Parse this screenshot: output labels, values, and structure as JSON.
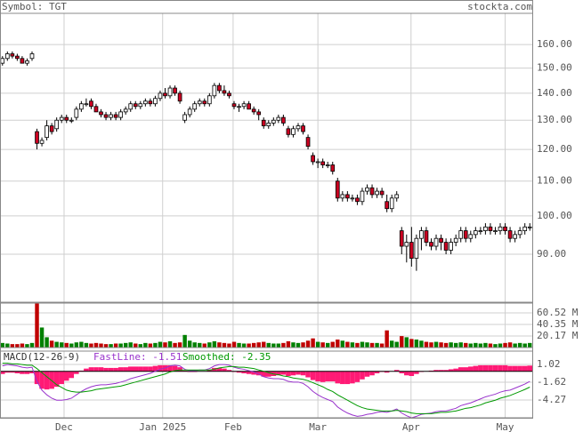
{
  "chart_data": {
    "type": "candlestick",
    "symbol": "Symbol: TGT",
    "source": "stockta.com",
    "log_scale": true,
    "grid": true,
    "xlim": [
      -0.5,
      107.5
    ],
    "xticks": [
      {
        "value": 12.5,
        "label": "Dec"
      },
      {
        "value": 32.5,
        "label": "Jan 2025"
      },
      {
        "value": 46.8,
        "label": "Feb"
      },
      {
        "value": 64,
        "label": "Mar"
      },
      {
        "value": 82.9,
        "label": "Apr"
      },
      {
        "value": 102,
        "label": "May"
      }
    ],
    "ylim": [
      78.9,
      174.3
    ],
    "yticks": [
      {
        "value": 90,
        "label": "90.00"
      },
      {
        "value": 100,
        "label": "100.00"
      },
      {
        "value": 110,
        "label": "110.00"
      },
      {
        "value": 120,
        "label": "120.00"
      },
      {
        "value": 130,
        "label": "130.00"
      },
      {
        "value": 140,
        "label": "140.00"
      },
      {
        "value": 150,
        "label": "150.00"
      },
      {
        "value": 160,
        "label": "160.00"
      }
    ],
    "up_color": "#ffffff",
    "down_color": "#cc0022",
    "candles": [
      [
        152,
        155,
        151,
        154
      ],
      [
        154,
        157,
        153,
        156
      ],
      [
        156,
        157,
        154,
        155
      ],
      [
        155,
        156,
        153,
        154
      ],
      [
        154,
        155,
        152,
        152
      ],
      [
        152,
        154,
        151,
        153
      ],
      [
        154,
        157,
        153,
        156
      ],
      [
        126,
        127,
        120,
        122
      ],
      [
        122,
        124,
        121,
        123
      ],
      [
        124,
        130,
        123,
        128
      ],
      [
        128,
        129,
        125,
        126
      ],
      [
        127,
        131,
        126,
        130
      ],
      [
        130,
        132,
        129,
        131
      ],
      [
        131,
        132,
        129,
        130
      ],
      [
        130,
        131,
        129,
        130
      ],
      [
        131,
        135,
        130,
        134
      ],
      [
        134,
        137,
        133,
        136
      ],
      [
        136,
        138,
        135,
        136
      ],
      [
        137,
        138,
        134,
        135
      ],
      [
        135,
        136,
        133,
        133
      ],
      [
        133,
        134,
        131,
        132
      ],
      [
        132,
        133,
        130,
        131
      ],
      [
        131,
        133,
        130,
        132
      ],
      [
        132,
        133,
        130,
        131
      ],
      [
        131,
        134,
        130,
        133
      ],
      [
        133,
        135,
        132,
        134
      ],
      [
        134,
        137,
        133,
        136
      ],
      [
        136,
        137,
        134,
        135
      ],
      [
        135,
        137,
        134,
        136
      ],
      [
        136,
        138,
        135,
        137
      ],
      [
        137,
        138,
        135,
        136
      ],
      [
        136,
        139,
        135,
        138
      ],
      [
        138,
        141,
        137,
        140
      ],
      [
        140,
        142,
        138,
        139
      ],
      [
        139,
        143,
        138,
        142
      ],
      [
        142,
        143,
        139,
        140
      ],
      [
        140,
        141,
        136,
        137
      ],
      [
        130,
        133,
        129,
        132
      ],
      [
        132,
        135,
        131,
        134
      ],
      [
        134,
        137,
        133,
        136
      ],
      [
        136,
        138,
        135,
        137
      ],
      [
        137,
        138,
        135,
        136
      ],
      [
        136,
        140,
        135,
        139
      ],
      [
        139,
        144,
        138,
        143
      ],
      [
        143,
        144,
        140,
        141
      ],
      [
        141,
        143,
        139,
        140
      ],
      [
        140,
        141,
        138,
        139
      ],
      [
        136,
        137,
        134,
        135
      ],
      [
        135,
        136,
        133,
        135
      ],
      [
        135,
        137,
        134,
        136
      ],
      [
        136,
        137,
        134,
        134
      ],
      [
        134,
        135,
        132,
        133
      ],
      [
        133,
        134,
        130,
        132
      ],
      [
        130,
        131,
        127,
        128
      ],
      [
        128,
        130,
        127,
        129
      ],
      [
        129,
        131,
        128,
        130
      ],
      [
        130,
        132,
        129,
        131
      ],
      [
        131,
        132,
        128,
        129
      ],
      [
        127,
        128,
        124,
        125
      ],
      [
        125,
        128,
        124,
        127
      ],
      [
        127,
        129,
        126,
        128
      ],
      [
        128,
        129,
        125,
        126
      ],
      [
        124,
        125,
        120,
        121
      ],
      [
        118,
        119,
        115,
        116
      ],
      [
        116,
        117,
        114,
        116
      ],
      [
        116,
        117,
        114,
        115
      ],
      [
        115,
        116,
        114,
        115
      ],
      [
        115,
        116,
        112,
        113
      ],
      [
        110,
        111,
        104,
        105
      ],
      [
        105,
        107,
        104,
        106
      ],
      [
        106,
        107,
        104,
        105
      ],
      [
        105,
        106,
        104,
        105
      ],
      [
        105,
        106,
        103,
        104
      ],
      [
        104,
        108,
        103,
        107
      ],
      [
        107,
        109,
        106,
        108
      ],
      [
        108,
        109,
        105,
        106
      ],
      [
        106,
        108,
        105,
        107
      ],
      [
        107,
        108,
        105,
        106
      ],
      [
        104,
        106,
        101,
        102
      ],
      [
        102,
        106,
        101,
        105
      ],
      [
        105,
        107,
        104,
        106
      ],
      [
        96,
        97,
        90,
        92
      ],
      [
        92,
        95,
        88,
        93
      ],
      [
        93,
        97,
        87,
        89
      ],
      [
        89,
        95,
        86,
        94
      ],
      [
        94,
        97,
        91,
        96
      ],
      [
        96,
        97,
        92,
        93
      ],
      [
        93,
        94,
        91,
        92
      ],
      [
        92,
        95,
        91,
        94
      ],
      [
        94,
        95,
        91,
        93
      ],
      [
        93,
        94,
        90,
        91
      ],
      [
        91,
        94,
        90,
        93
      ],
      [
        93,
        95,
        92,
        94
      ],
      [
        94,
        97,
        93,
        96
      ],
      [
        96,
        97,
        93,
        94
      ],
      [
        94,
        96,
        93,
        95
      ],
      [
        95,
        97,
        94,
        96
      ],
      [
        96,
        97,
        95,
        96
      ],
      [
        96,
        98,
        95,
        97
      ],
      [
        97,
        98,
        95,
        96
      ],
      [
        96,
        97,
        95,
        96
      ],
      [
        96,
        98,
        95,
        97
      ],
      [
        97,
        98,
        95,
        96
      ],
      [
        96,
        97,
        93,
        94
      ],
      [
        94,
        96,
        93,
        95
      ],
      [
        95,
        97,
        94,
        96
      ],
      [
        96,
        98,
        95,
        97
      ],
      [
        97,
        98,
        96,
        97
      ]
    ],
    "volume": {
      "up_color": "#008000",
      "down_color": "#c00000",
      "ylim": [
        0,
        77.6
      ],
      "yticks": [
        {
          "value": 20.17,
          "label": "20.17 M"
        },
        {
          "value": 40.35,
          "label": "40.35 M"
        },
        {
          "value": 60.52,
          "label": "60.52 M"
        }
      ],
      "values": [
        8,
        7,
        6,
        6,
        7,
        6,
        8,
        77,
        35,
        18,
        12,
        10,
        9,
        8,
        7,
        9,
        10,
        8,
        7,
        8,
        7,
        6,
        6,
        7,
        7,
        8,
        9,
        7,
        6,
        8,
        7,
        8,
        10,
        9,
        11,
        8,
        9,
        22,
        12,
        9,
        8,
        7,
        9,
        11,
        9,
        8,
        7,
        10,
        8,
        7,
        7,
        8,
        9,
        10,
        8,
        7,
        7,
        8,
        11,
        9,
        8,
        9,
        12,
        16,
        10,
        9,
        8,
        10,
        14,
        12,
        10,
        9,
        8,
        10,
        9,
        8,
        8,
        7,
        30,
        12,
        10,
        20,
        18,
        15,
        14,
        12,
        10,
        9,
        10,
        9,
        8,
        9,
        8,
        9,
        8,
        7,
        8,
        7,
        8,
        7,
        6,
        7,
        8,
        9,
        7,
        8,
        7,
        8
      ]
    },
    "macd": {
      "label": "MACD(12-26-9)",
      "ylim": [
        -6.91,
        3.0
      ],
      "yticks": [
        {
          "value": -4.27,
          "label": "-4.27"
        },
        {
          "value": -1.62,
          "label": "-1.62"
        },
        {
          "value": 1.02,
          "label": "1.02"
        }
      ],
      "histogram": {
        "color": "#ff1a75",
        "values": [
          -0.4,
          -0.2,
          -0.2,
          -0.3,
          -0.4,
          -0.4,
          -0.3,
          -1.9,
          -2.6,
          -2.7,
          -2.6,
          -2.3,
          -1.9,
          -1.4,
          -1.0,
          -0.4,
          0.1,
          0.4,
          0.6,
          0.6,
          0.6,
          0.5,
          0.5,
          0.5,
          0.6,
          0.6,
          0.7,
          0.7,
          0.7,
          0.7,
          0.7,
          0.8,
          0.9,
          0.9,
          0.9,
          0.8,
          0.6,
          0.1,
          -0.1,
          -0.1,
          0,
          0,
          0.2,
          0.5,
          0.5,
          0.4,
          0.2,
          -0.1,
          -0.2,
          -0.3,
          -0.4,
          -0.5,
          -0.6,
          -0.8,
          -0.8,
          -0.7,
          -0.6,
          -0.5,
          -0.7,
          -0.6,
          -0.5,
          -0.6,
          -0.9,
          -1.3,
          -1.5,
          -1.6,
          -1.5,
          -1.5,
          -1.8,
          -1.9,
          -1.9,
          -1.8,
          -1.6,
          -1.2,
          -0.8,
          -0.6,
          -0.3,
          -0.1,
          -0.2,
          0,
          0.2,
          -0.3,
          -0.6,
          -0.7,
          -0.4,
          -0.1,
          0,
          0.1,
          0.2,
          0.2,
          0.2,
          0.3,
          0.4,
          0.6,
          0.6,
          0.7,
          0.8,
          0.9,
          0.9,
          0.9,
          0.9,
          0.9,
          0.9,
          0.8,
          0.8,
          0.8,
          0.8,
          0.85
        ]
      },
      "series": [
        {
          "name": "FastLine: -1.51",
          "color": "#9933cc",
          "values": [
            0.8,
            1.0,
            0.9,
            0.8,
            0.6,
            0.5,
            0.6,
            -1.5,
            -2.8,
            -3.5,
            -4.0,
            -4.3,
            -4.3,
            -4.2,
            -4.0,
            -3.5,
            -3.0,
            -2.6,
            -2.3,
            -2.1,
            -2.0,
            -2.0,
            -1.9,
            -1.8,
            -1.6,
            -1.4,
            -1.1,
            -0.9,
            -0.7,
            -0.5,
            -0.3,
            0,
            0.3,
            0.5,
            0.8,
            0.9,
            0.8,
            0.3,
            0.1,
            0.1,
            0.2,
            0.2,
            0.4,
            0.8,
            1.0,
            1.0,
            0.9,
            0.6,
            0.4,
            0.3,
            0.1,
            -0.1,
            -0.4,
            -0.8,
            -1.0,
            -1.1,
            -1.1,
            -1.2,
            -1.5,
            -1.6,
            -1.6,
            -1.8,
            -2.3,
            -3.0,
            -3.5,
            -3.9,
            -4.2,
            -4.5,
            -5.3,
            -5.8,
            -6.2,
            -6.5,
            -6.7,
            -6.6,
            -6.4,
            -6.3,
            -6.1,
            -6.0,
            -6.1,
            -5.9,
            -5.6,
            -6.2,
            -6.6,
            -6.9,
            -6.7,
            -6.4,
            -6.3,
            -6.2,
            -6.0,
            -5.9,
            -5.9,
            -5.7,
            -5.5,
            -5.1,
            -4.9,
            -4.7,
            -4.4,
            -4.1,
            -3.8,
            -3.6,
            -3.4,
            -3.1,
            -2.9,
            -2.8,
            -2.5,
            -2.2,
            -1.9,
            -1.5
          ]
        },
        {
          "name": "Smoothed: -2.35",
          "color": "#009900",
          "values": [
            1.2,
            1.2,
            1.1,
            1.1,
            1.0,
            0.9,
            0.9,
            0.4,
            -0.2,
            -0.8,
            -1.4,
            -2.0,
            -2.4,
            -2.8,
            -3.0,
            -3.1,
            -3.1,
            -3.0,
            -2.9,
            -2.7,
            -2.6,
            -2.5,
            -2.4,
            -2.3,
            -2.2,
            -2.0,
            -1.8,
            -1.6,
            -1.4,
            -1.2,
            -1.0,
            -0.8,
            -0.6,
            -0.4,
            -0.1,
            0.1,
            0.2,
            0.2,
            0.2,
            0.2,
            0.2,
            0.2,
            0.2,
            0.3,
            0.5,
            0.6,
            0.7,
            0.7,
            0.6,
            0.6,
            0.5,
            0.4,
            0.2,
            0,
            -0.2,
            -0.4,
            -0.5,
            -0.7,
            -0.8,
            -1.0,
            -1.1,
            -1.2,
            -1.4,
            -1.7,
            -2.0,
            -2.3,
            -2.7,
            -3.0,
            -3.5,
            -3.9,
            -4.3,
            -4.7,
            -5.1,
            -5.4,
            -5.6,
            -5.7,
            -5.8,
            -5.9,
            -5.9,
            -5.9,
            -5.8,
            -5.9,
            -6.0,
            -6.2,
            -6.3,
            -6.3,
            -6.3,
            -6.3,
            -6.2,
            -6.1,
            -6.1,
            -6.0,
            -5.9,
            -5.7,
            -5.5,
            -5.4,
            -5.2,
            -5.0,
            -4.7,
            -4.5,
            -4.3,
            -4.0,
            -3.8,
            -3.6,
            -3.3,
            -3.0,
            -2.7,
            -2.35
          ]
        }
      ]
    }
  }
}
